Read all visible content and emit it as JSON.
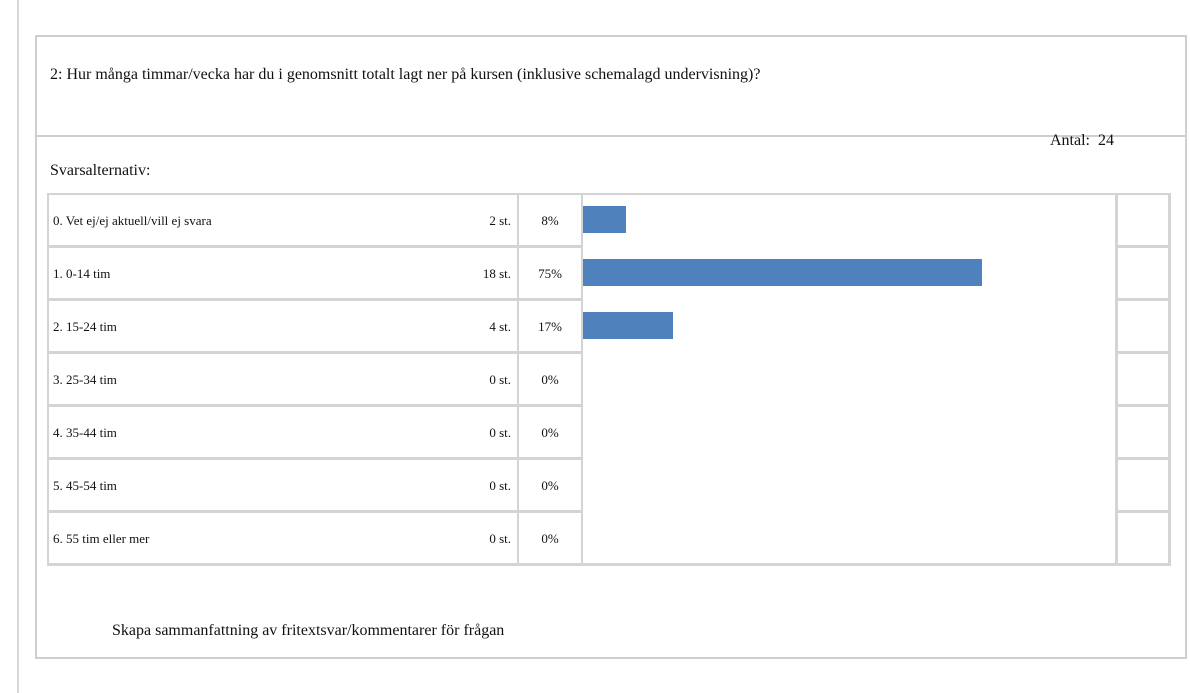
{
  "question": "2:  Hur många timmar/vecka har du i genomsnitt totalt lagt ner på kursen (inklusive schemalagd undervisning)?",
  "total_label": "Antal:",
  "total": 24,
  "options_heading": "Svarsalternativ:",
  "footer_link": "Skapa sammanfattning av fritextsvar/kommentarer för frågan",
  "chart_data": {
    "type": "bar",
    "orientation": "horizontal",
    "color": "#4f81bd",
    "categories": [
      "0.  Vet ej/ej aktuell/vill ej svara",
      "1.  0-14 tim",
      "2.  15-24 tim",
      "3.  25-34 tim",
      "4.  35-44 tim",
      "5.  45-54 tim",
      "6.  55 tim eller mer"
    ],
    "counts": [
      2,
      18,
      4,
      0,
      0,
      0,
      0
    ],
    "count_labels": [
      "2 st.",
      "18 st.",
      "4 st.",
      "0 st.",
      "0 st.",
      "0 st.",
      "0 st."
    ],
    "values": [
      8,
      75,
      17,
      0,
      0,
      0,
      0
    ],
    "value_labels": [
      "8%",
      "75%",
      "17%",
      "0%",
      "0%",
      "0%",
      "0%"
    ],
    "xlim": [
      0,
      100
    ]
  }
}
